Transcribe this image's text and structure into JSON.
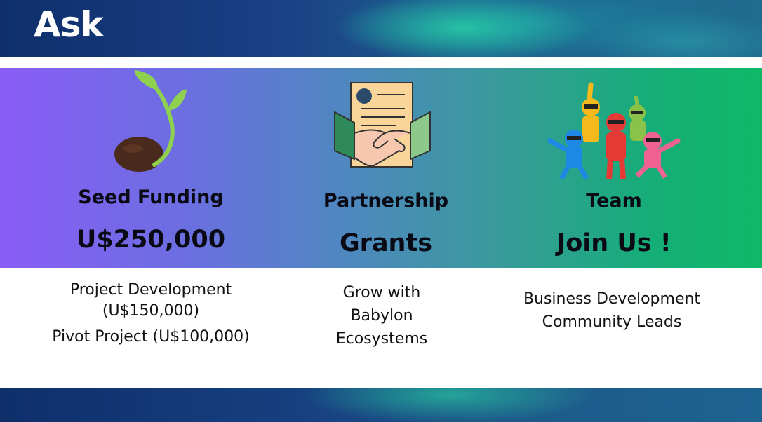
{
  "title": "Ask",
  "columns": [
    {
      "heading": "Seed Funding",
      "value": "U$250,000",
      "details": [
        "Project Development",
        "(U$150,000)",
        "Pivot Project (U$100,000)"
      ],
      "icon": "sprout-icon"
    },
    {
      "heading": "Partnership",
      "value": "Grants",
      "details": [
        "Grow with",
        "Babylon",
        "Ecosystems"
      ],
      "icon": "handshake-contract-icon"
    },
    {
      "heading": "Team",
      "value": "Join Us !",
      "details": [
        "Business Development",
        "Community Leads"
      ],
      "icon": "team-heroes-icon"
    }
  ],
  "colors": {
    "band_start": "#8a5cf6",
    "band_end": "#0fb866",
    "header_bg": "#1a3f86"
  }
}
